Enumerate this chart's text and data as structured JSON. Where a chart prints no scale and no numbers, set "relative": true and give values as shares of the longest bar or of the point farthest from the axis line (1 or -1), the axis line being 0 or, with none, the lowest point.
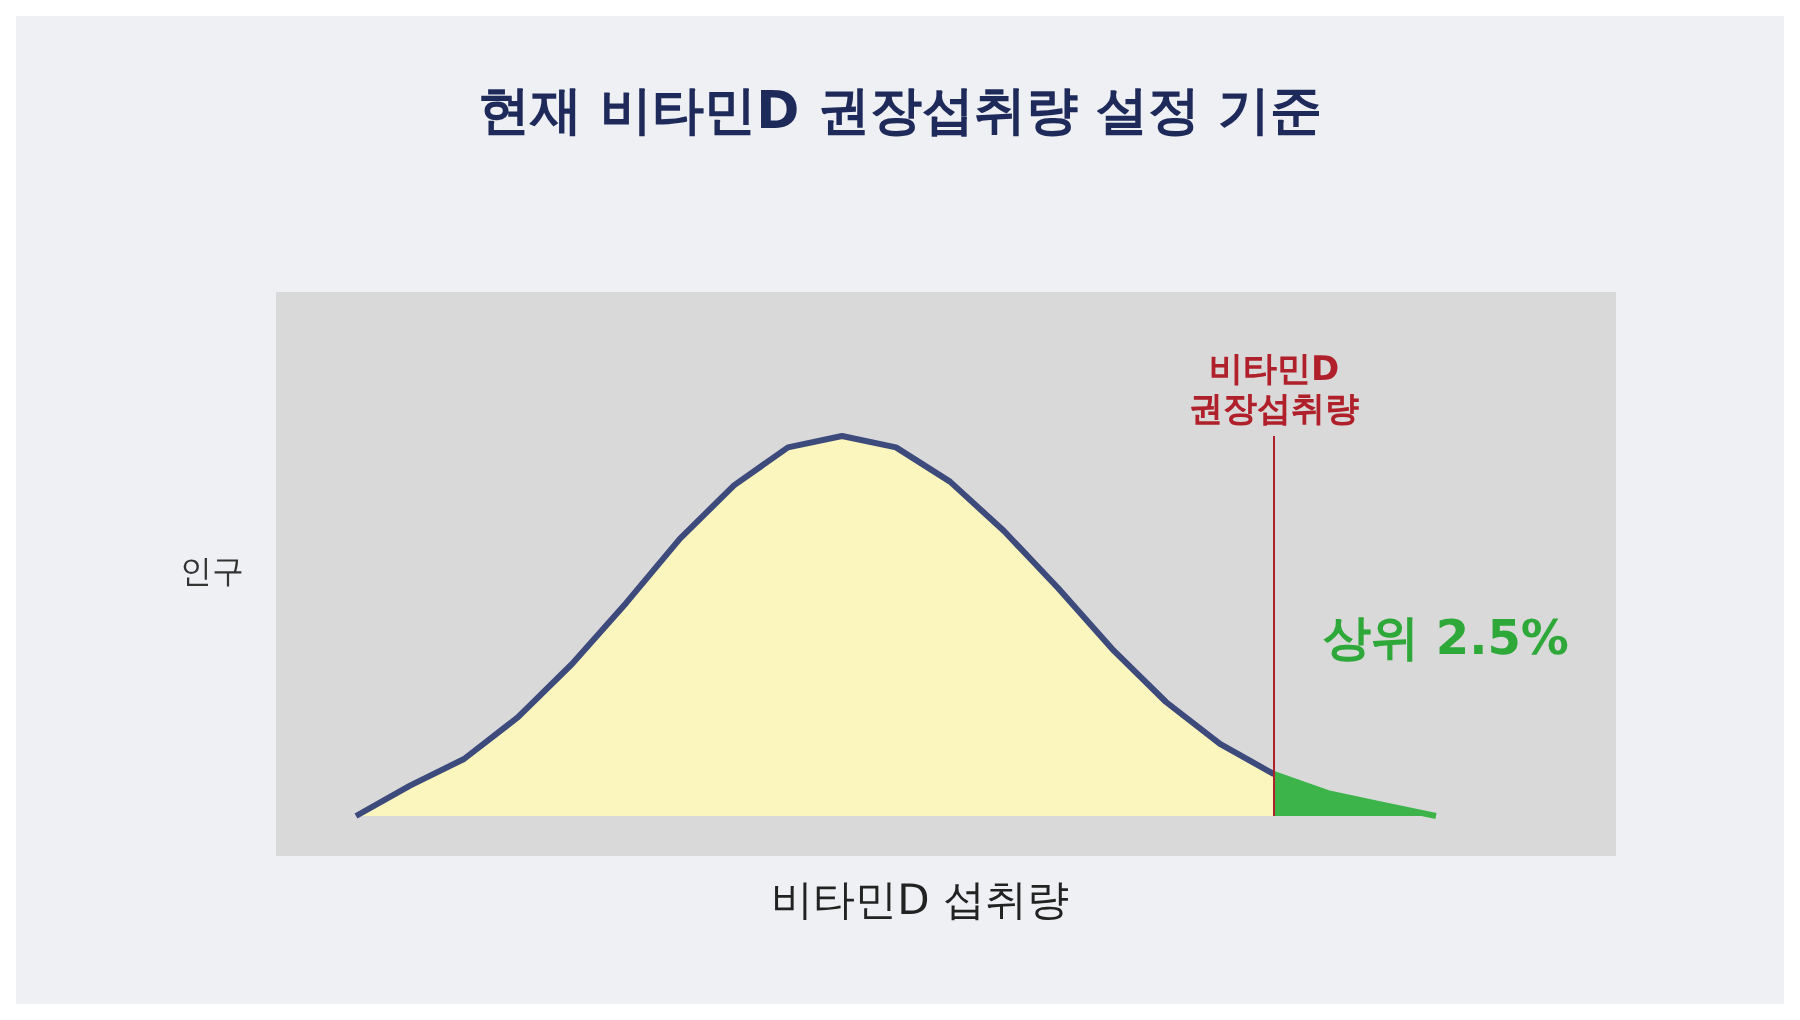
{
  "chart_data": {
    "type": "area",
    "title": "현재 비타민D 권장섭취량 설정 기준",
    "xlabel": "비타민D 섭취량",
    "ylabel": "인구",
    "relative": true,
    "categories": [
      null,
      null,
      null,
      null,
      null,
      null,
      null,
      null,
      null,
      null,
      null,
      null,
      null,
      null,
      null,
      null,
      null,
      null,
      null,
      null,
      null
    ],
    "series": [
      {
        "color": "#fbf6bd",
        "values": [
          0,
          0.08,
          0.15,
          0.26,
          0.4,
          0.56,
          0.73,
          0.87,
          0.97,
          1,
          0.97,
          0.88,
          0.75,
          0.6,
          0.44,
          0.3,
          0.19,
          0.11,
          null,
          null,
          null
        ]
      },
      {
        "color": "#3cb44a",
        "values": [
          null,
          null,
          null,
          null,
          null,
          null,
          null,
          null,
          null,
          null,
          null,
          null,
          null,
          null,
          null,
          null,
          null,
          0.11,
          0.06,
          0.03,
          0
        ]
      }
    ],
    "annotations": [
      "비타민D 권장섭취량",
      "상위 2.5%"
    ]
  }
}
